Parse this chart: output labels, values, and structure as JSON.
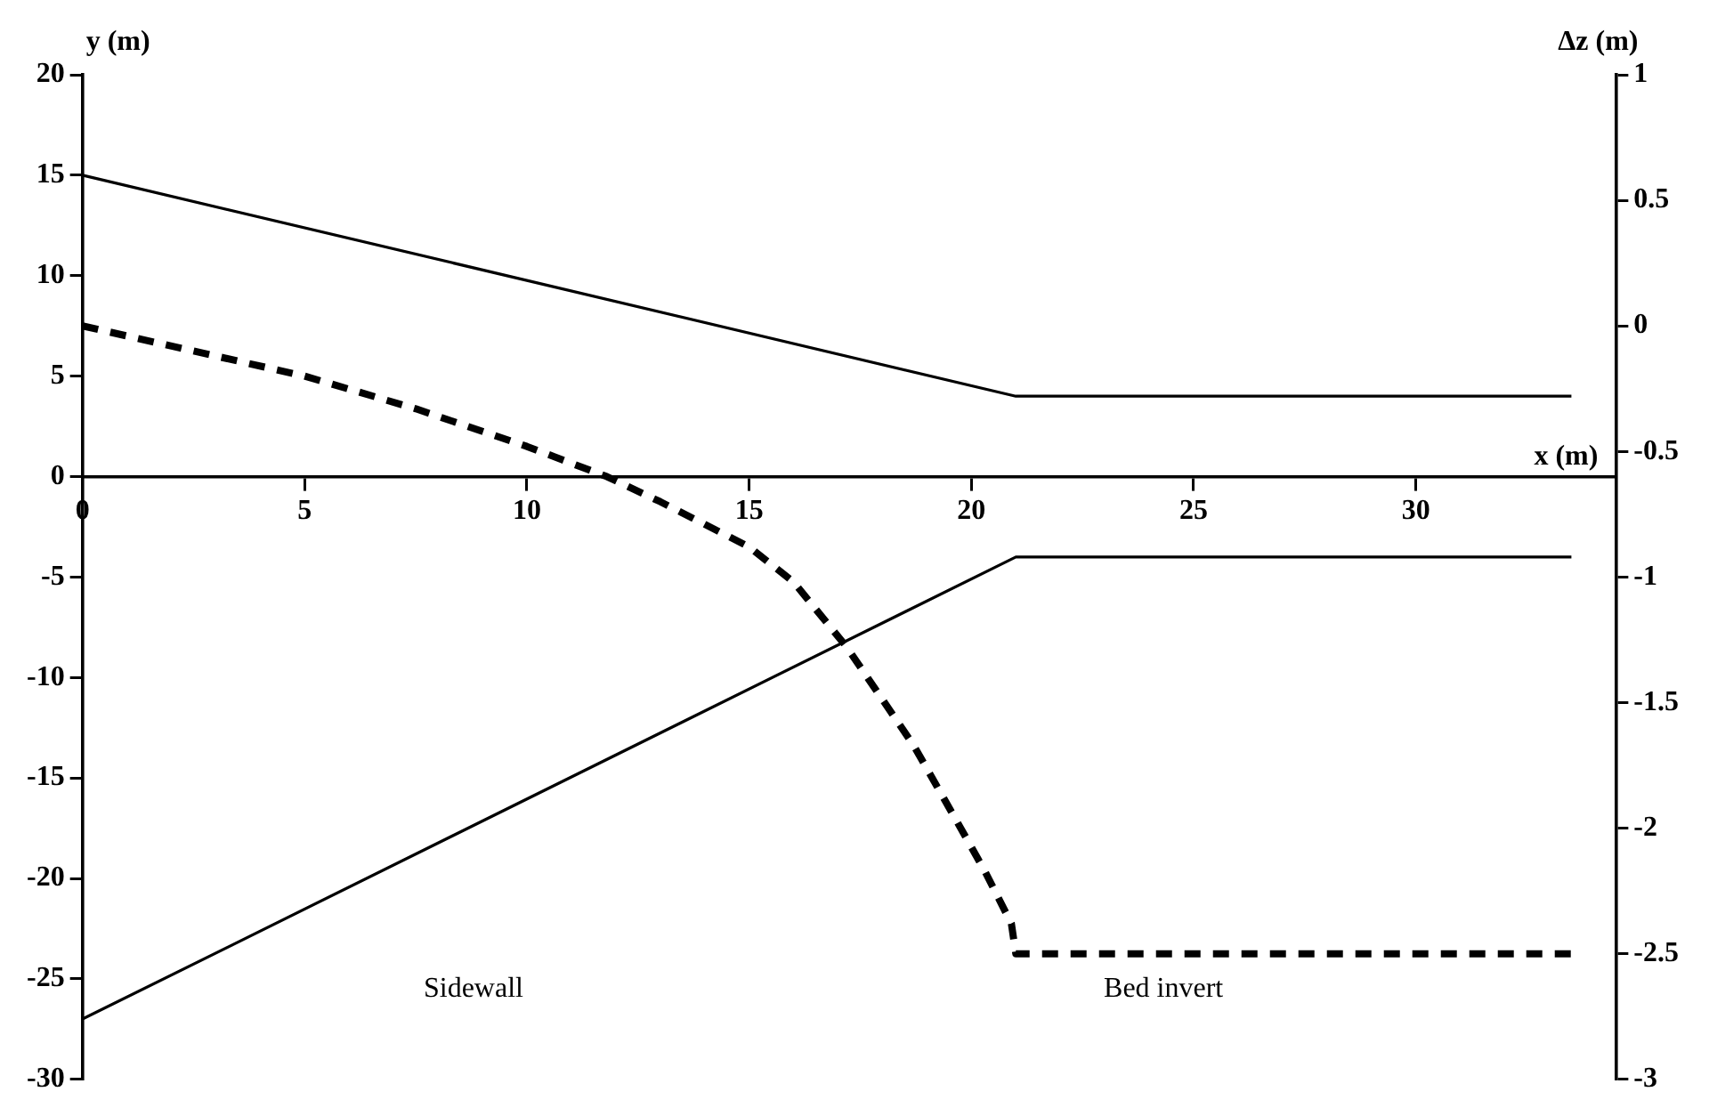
{
  "chart_data": {
    "type": "line",
    "xlabel": "x (m)",
    "ylabel": "y (m)",
    "y2label": "Δz (m)",
    "xlim": [
      0,
      34.5
    ],
    "xticks": [
      0,
      5,
      10,
      15,
      20,
      25,
      30
    ],
    "ylim": [
      -30,
      20
    ],
    "yticks": [
      -30,
      -25,
      -20,
      -15,
      -10,
      -5,
      0,
      5,
      10,
      15,
      20
    ],
    "y2lim": [
      -3,
      1
    ],
    "y2ticks": [
      -3,
      -2.5,
      -2,
      -1.5,
      -1,
      -0.5,
      0,
      0.5,
      1
    ],
    "legend": false,
    "marker": "none",
    "series": [
      {
        "color": "#000000",
        "x": [
          0,
          21,
          33.5
        ],
        "values": [
          15,
          4,
          4
        ],
        "line_style": "solid"
      },
      {
        "color": "#000000",
        "x": [
          0,
          21,
          33.5
        ],
        "values": [
          -27,
          -4,
          -4
        ],
        "line_style": "solid"
      },
      {
        "color": "#000000",
        "axis": "y2",
        "line_style": "dashed",
        "x": [
          0,
          2.5,
          5,
          7.5,
          10,
          11.8,
          13,
          15,
          16,
          17.2,
          18.7,
          19.6,
          20.3,
          20.9,
          21,
          33.5
        ],
        "values": [
          0,
          -0.1,
          -0.2,
          -0.33,
          -0.48,
          -0.6,
          -0.7,
          -0.88,
          -1.02,
          -1.28,
          -1.67,
          -1.95,
          -2.17,
          -2.38,
          -2.5,
          -2.5
        ]
      }
    ],
    "annotations": [
      "Sidewall",
      "Bed invert"
    ]
  }
}
